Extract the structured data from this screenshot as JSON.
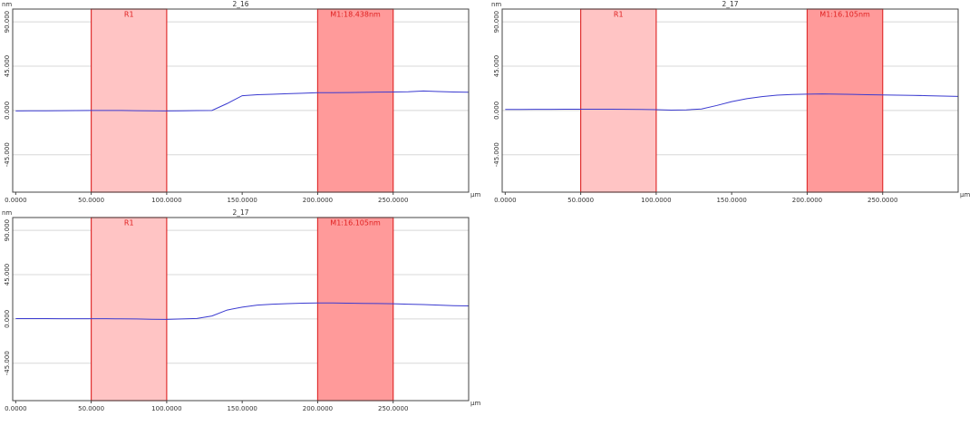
{
  "chart_data": [
    {
      "type": "line",
      "title": "2_16",
      "y_label": "nm",
      "x_label": "µm",
      "x": [
        0,
        10,
        20,
        30,
        40,
        50,
        60,
        70,
        80,
        90,
        100,
        110,
        120,
        130,
        140,
        150,
        160,
        170,
        180,
        190,
        200,
        210,
        220,
        230,
        240,
        250,
        260,
        270,
        280,
        290,
        300
      ],
      "series": [
        {
          "color": "#3a3ad0",
          "values": [
            -0.5,
            -0.4,
            -0.3,
            -0.2,
            -0.1,
            0,
            0,
            0,
            -0.2,
            -0.4,
            -0.5,
            -0.3,
            -0.1,
            0,
            7,
            15,
            16,
            16.5,
            17,
            17.5,
            18,
            18,
            18.2,
            18.4,
            18.6,
            18.8,
            19,
            19.8,
            19.2,
            18.7,
            18.5
          ]
        }
      ],
      "regions": [
        {
          "label": "R1",
          "start": 50,
          "end": 100,
          "color": "#ffc4c4"
        },
        {
          "label": "M1:18.438nm",
          "start": 200,
          "end": 250,
          "color": "#ff9a9a"
        }
      ],
      "xlim": [
        -2,
        300
      ],
      "ylim": [
        -83,
        103
      ],
      "xticks": [
        {
          "value": 0,
          "label": "0.0000"
        },
        {
          "value": 50,
          "label": "50.0000"
        },
        {
          "value": 100,
          "label": "100.0000"
        },
        {
          "value": 150,
          "label": "150.0000"
        },
        {
          "value": 200,
          "label": "200.0000"
        },
        {
          "value": 250,
          "label": "250.0000"
        }
      ],
      "yticks": [
        {
          "value": 90,
          "label": "90.000"
        },
        {
          "value": 45,
          "label": "45.000"
        },
        {
          "value": 0,
          "label": "0.000"
        },
        {
          "value": -45,
          "label": "-45.000"
        }
      ],
      "grid": true
    },
    {
      "type": "line",
      "title": "2_17",
      "y_label": "nm",
      "x_label": "µm",
      "x": [
        0,
        10,
        20,
        30,
        40,
        50,
        60,
        70,
        80,
        90,
        100,
        110,
        120,
        130,
        140,
        150,
        160,
        170,
        180,
        190,
        200,
        210,
        220,
        230,
        240,
        250,
        260,
        270,
        280,
        290,
        300
      ],
      "series": [
        {
          "color": "#3a3ad0",
          "values": [
            1,
            1,
            1.1,
            1.1,
            1.2,
            1.2,
            1.2,
            1.2,
            1.1,
            1,
            0.8,
            0.3,
            0.6,
            1.5,
            5,
            9,
            12,
            14,
            15.5,
            16.2,
            16.6,
            16.8,
            16.6,
            16.3,
            16,
            15.8,
            15.5,
            15.3,
            15,
            14.6,
            14.3
          ]
        }
      ],
      "regions": [
        {
          "label": "R1",
          "start": 50,
          "end": 100,
          "color": "#ffc4c4"
        },
        {
          "label": "M1:16.105nm",
          "start": 200,
          "end": 250,
          "color": "#ff9a9a"
        }
      ],
      "xlim": [
        -2,
        300
      ],
      "ylim": [
        -83,
        103
      ],
      "xticks": [
        {
          "value": 0,
          "label": "0.0000"
        },
        {
          "value": 50,
          "label": "50.0000"
        },
        {
          "value": 100,
          "label": "100.0000"
        },
        {
          "value": 150,
          "label": "150.0000"
        },
        {
          "value": 200,
          "label": "200.0000"
        },
        {
          "value": 250,
          "label": "250.0000"
        }
      ],
      "yticks": [
        {
          "value": 90,
          "label": "90.000"
        },
        {
          "value": 45,
          "label": "45.000"
        },
        {
          "value": 0,
          "label": "0.000"
        },
        {
          "value": -45,
          "label": "-45.000"
        }
      ],
      "grid": true
    },
    {
      "type": "line",
      "title": "2_17",
      "y_label": "nm",
      "x_label": "µm",
      "x": [
        0,
        10,
        20,
        30,
        40,
        50,
        60,
        70,
        80,
        90,
        100,
        110,
        120,
        130,
        140,
        150,
        160,
        170,
        180,
        190,
        200,
        210,
        220,
        230,
        240,
        250,
        260,
        270,
        280,
        290,
        300
      ],
      "series": [
        {
          "color": "#3a3ad0",
          "values": [
            0.3,
            0.3,
            0.3,
            0.2,
            0.2,
            0.2,
            0.2,
            0.1,
            0,
            -0.3,
            -0.5,
            0,
            0.5,
            3,
            9,
            12,
            14,
            15,
            15.5,
            16,
            16.2,
            16.2,
            16,
            15.8,
            15.6,
            15.4,
            15,
            14.6,
            14,
            13.5,
            13.2
          ]
        }
      ],
      "regions": [
        {
          "label": "R1",
          "start": 50,
          "end": 100,
          "color": "#ffc4c4"
        },
        {
          "label": "M1:16.105nm",
          "start": 200,
          "end": 250,
          "color": "#ff9a9a"
        }
      ],
      "xlim": [
        -2,
        300
      ],
      "ylim": [
        -83,
        103
      ],
      "xticks": [
        {
          "value": 0,
          "label": "0.0000"
        },
        {
          "value": 50,
          "label": "50.0000"
        },
        {
          "value": 100,
          "label": "100.0000"
        },
        {
          "value": 150,
          "label": "150.0000"
        },
        {
          "value": 200,
          "label": "200.0000"
        },
        {
          "value": 250,
          "label": "250.0000"
        }
      ],
      "yticks": [
        {
          "value": 90,
          "label": "90.000"
        },
        {
          "value": 45,
          "label": "45.000"
        },
        {
          "value": 0,
          "label": "0.000"
        },
        {
          "value": -45,
          "label": "-45.000"
        }
      ],
      "grid": true
    }
  ]
}
